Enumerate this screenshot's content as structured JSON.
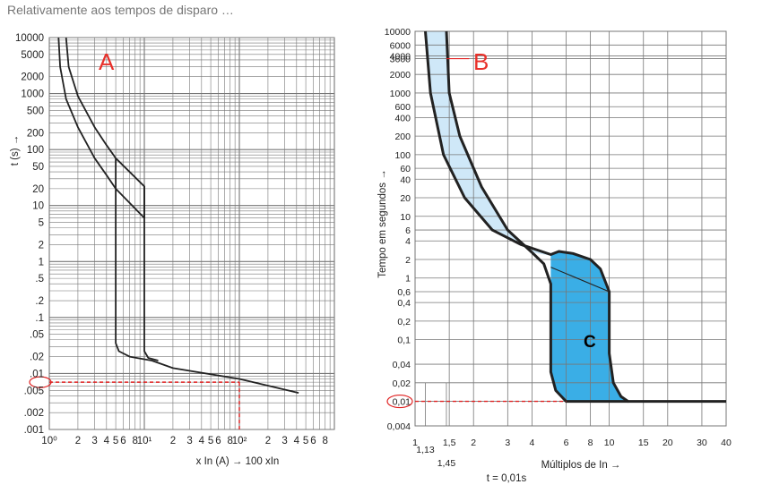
{
  "heading": "Relativamente aos tempos de disparo …",
  "colors": {
    "grid": "#777777",
    "curve": "#222222",
    "red": "#e02020",
    "band_light": "#cfe8f8",
    "band_dark": "#3aaee6",
    "label_red": "#e8302a"
  },
  "chart_data": [
    {
      "type": "line",
      "id": "A",
      "marker_label": "A",
      "xscale": "log",
      "yscale": "log",
      "xlim": [
        1,
        1000
      ],
      "ylim": [
        0.001,
        10000
      ],
      "ylabel": "t (s) →",
      "xlabel": "x In (A) → 100 xIn",
      "y_ticks": [
        {
          "v": 10000,
          "t": "10000"
        },
        {
          "v": 5000,
          "t": "5000"
        },
        {
          "v": 2000,
          "t": "2000"
        },
        {
          "v": 1000,
          "t": "1000"
        },
        {
          "v": 500,
          "t": "500"
        },
        {
          "v": 200,
          "t": "200"
        },
        {
          "v": 100,
          "t": "100"
        },
        {
          "v": 50,
          "t": "50"
        },
        {
          "v": 20,
          "t": "20"
        },
        {
          "v": 10,
          "t": "10"
        },
        {
          "v": 5,
          "t": "5"
        },
        {
          "v": 2,
          "t": "2"
        },
        {
          "v": 1,
          "t": "1"
        },
        {
          "v": 0.5,
          "t": ".5"
        },
        {
          "v": 0.2,
          "t": ".2"
        },
        {
          "v": 0.1,
          "t": ".1"
        },
        {
          "v": 0.05,
          "t": ".05"
        },
        {
          "v": 0.02,
          "t": ".02"
        },
        {
          "v": 0.01,
          "t": ".01"
        },
        {
          "v": 0.005,
          "t": ".005"
        },
        {
          "v": 0.002,
          "t": ".002"
        },
        {
          "v": 0.001,
          "t": ".001"
        }
      ],
      "x_ticks": [
        {
          "v": 1,
          "t": "10⁰"
        },
        {
          "v": 2,
          "t": "2"
        },
        {
          "v": 3,
          "t": "3"
        },
        {
          "v": 4,
          "t": "4"
        },
        {
          "v": 5,
          "t": "5"
        },
        {
          "v": 6,
          "t": "6"
        },
        {
          "v": 8,
          "t": "8"
        },
        {
          "v": 10,
          "t": "10¹"
        },
        {
          "v": 20,
          "t": "2"
        },
        {
          "v": 30,
          "t": "3"
        },
        {
          "v": 40,
          "t": "4"
        },
        {
          "v": 50,
          "t": "5"
        },
        {
          "v": 60,
          "t": "6"
        },
        {
          "v": 80,
          "t": "8"
        },
        {
          "v": 100,
          "t": "10²"
        },
        {
          "v": 200,
          "t": "2"
        },
        {
          "v": 300,
          "t": "3"
        },
        {
          "v": 400,
          "t": "4"
        },
        {
          "v": 500,
          "t": "5"
        },
        {
          "v": 600,
          "t": "6"
        },
        {
          "v": 800,
          "t": "8"
        }
      ],
      "series": [
        {
          "name": "lower-curve",
          "points": [
            [
              1.25,
              10000
            ],
            [
              1.3,
              3000
            ],
            [
              1.5,
              800
            ],
            [
              2,
              250
            ],
            [
              3,
              70
            ],
            [
              4,
              35
            ],
            [
              5,
              20
            ],
            [
              5,
              0.035
            ],
            [
              5.4,
              0.025
            ],
            [
              7,
              0.02
            ],
            [
              12,
              0.017
            ],
            [
              20,
              0.0125
            ],
            [
              100,
              0.008
            ],
            [
              420,
              0.0045
            ]
          ]
        },
        {
          "name": "upper-curve",
          "points": [
            [
              1.5,
              10000
            ],
            [
              1.6,
              3000
            ],
            [
              2,
              900
            ],
            [
              3,
              250
            ],
            [
              4,
              120
            ],
            [
              5,
              70
            ],
            [
              10,
              22
            ],
            [
              10,
              0.025
            ],
            [
              11,
              0.019
            ],
            [
              14,
              0.017
            ]
          ]
        },
        {
          "name": "inner-link",
          "points": [
            [
              5,
              70
            ],
            [
              5,
              20
            ],
            [
              10,
              6
            ],
            [
              10,
              22
            ]
          ]
        }
      ],
      "reference": {
        "x": 100,
        "y": 0.007,
        "marker_text": ".01"
      }
    },
    {
      "type": "area",
      "id": "B",
      "marker_label": "B",
      "zone_label": "C",
      "xscale": "log",
      "yscale": "log",
      "xlim": [
        1,
        40
      ],
      "ylim": [
        0.004,
        10000
      ],
      "ylabel": "Tempo em segundos →",
      "xlabel": "Múltiplos de In →",
      "footnote": "t = 0,01s",
      "y_ticks": [
        {
          "v": 10000,
          "t": "10000"
        },
        {
          "v": 6000,
          "t": "6000"
        },
        {
          "v": 4000,
          "t": "4000"
        },
        {
          "v": 3600,
          "t": "3600"
        },
        {
          "v": 2000,
          "t": "2000"
        },
        {
          "v": 1000,
          "t": "1000"
        },
        {
          "v": 600,
          "t": "600"
        },
        {
          "v": 400,
          "t": "400"
        },
        {
          "v": 200,
          "t": "200"
        },
        {
          "v": 100,
          "t": "100"
        },
        {
          "v": 60,
          "t": "60"
        },
        {
          "v": 40,
          "t": "40"
        },
        {
          "v": 20,
          "t": "20"
        },
        {
          "v": 10,
          "t": "10"
        },
        {
          "v": 6,
          "t": "6"
        },
        {
          "v": 4,
          "t": "4"
        },
        {
          "v": 2,
          "t": "2"
        },
        {
          "v": 1,
          "t": "1"
        },
        {
          "v": 0.6,
          "t": "0,6"
        },
        {
          "v": 0.4,
          "t": "0,4"
        },
        {
          "v": 0.2,
          "t": "0,2"
        },
        {
          "v": 0.1,
          "t": "0,1"
        },
        {
          "v": 0.04,
          "t": "0,04"
        },
        {
          "v": 0.02,
          "t": "0,02"
        },
        {
          "v": 0.01,
          "t": "0,01"
        },
        {
          "v": 0.004,
          "t": "0,004"
        }
      ],
      "x_ticks": [
        {
          "v": 1,
          "t": "1"
        },
        {
          "v": 1.5,
          "t": "1,5"
        },
        {
          "v": 2,
          "t": "2"
        },
        {
          "v": 3,
          "t": "3"
        },
        {
          "v": 4,
          "t": "4"
        },
        {
          "v": 6,
          "t": "6"
        },
        {
          "v": 8,
          "t": "8"
        },
        {
          "v": 10,
          "t": "10"
        },
        {
          "v": 15,
          "t": "15"
        },
        {
          "v": 20,
          "t": "20"
        },
        {
          "v": 30,
          "t": "30"
        },
        {
          "v": 40,
          "t": "40"
        }
      ],
      "x_ticks_low": [
        {
          "v": 1.13,
          "t": "1,13"
        },
        {
          "v": 1.45,
          "t": "1,45"
        }
      ],
      "series": [
        {
          "name": "inner-curve",
          "points": [
            [
              1.13,
              10000
            ],
            [
              1.2,
              1000
            ],
            [
              1.4,
              100
            ],
            [
              1.8,
              20
            ],
            [
              2.5,
              6
            ],
            [
              3.5,
              3.5
            ],
            [
              5,
              2.4
            ],
            [
              5.5,
              2.7
            ],
            [
              6.5,
              2.5
            ],
            [
              8,
              2
            ],
            [
              9,
              1.4
            ],
            [
              10,
              0.6
            ],
            [
              10,
              0.06
            ],
            [
              10.5,
              0.02
            ],
            [
              11.5,
              0.012
            ],
            [
              12.5,
              0.01
            ],
            [
              40,
              0.01
            ]
          ]
        },
        {
          "name": "outer-curve",
          "points": [
            [
              1.45,
              10000
            ],
            [
              1.5,
              1000
            ],
            [
              1.7,
              200
            ],
            [
              2.2,
              30
            ],
            [
              3,
              6
            ],
            [
              4,
              2.6
            ],
            [
              4.6,
              1.7
            ],
            [
              5,
              0.8
            ],
            [
              5,
              0.1
            ],
            [
              5,
              0.03
            ],
            [
              5.3,
              0.015
            ],
            [
              6,
              0.01
            ],
            [
              12.5,
              0.01
            ]
          ]
        },
        {
          "name": "diagonal",
          "points": [
            [
              5,
              1.5
            ],
            [
              10,
              0.6
            ]
          ]
        }
      ],
      "marker_lines": [
        {
          "y": 3600,
          "x_from": 1.45,
          "x_to": 1.9
        },
        {
          "y": 0.01,
          "x_from": 1,
          "x_to": 6
        }
      ]
    }
  ]
}
